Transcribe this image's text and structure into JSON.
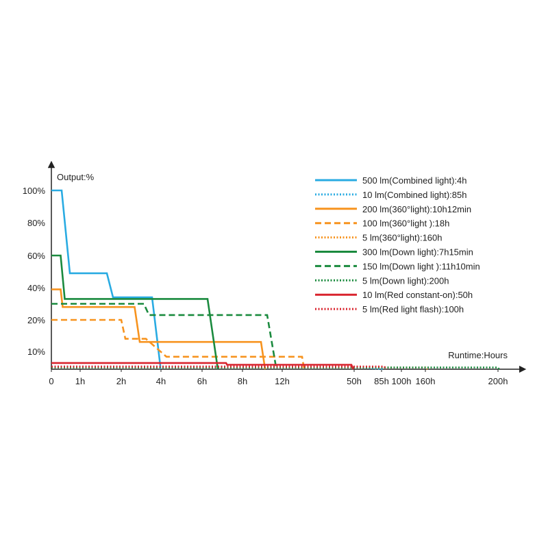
{
  "chart_data": {
    "type": "line",
    "ylabel": "Output:%",
    "xlabel": "Runtime:Hours",
    "x_ticks": [
      "0",
      "1h",
      "2h",
      "4h",
      "6h",
      "8h",
      "12h",
      "50h",
      "85h",
      "100h",
      "160h",
      "200h"
    ],
    "y_ticks": [
      "10%",
      "20%",
      "40%",
      "60%",
      "80%",
      "100%"
    ],
    "legend_position": "top-right",
    "series": [
      {
        "name": "500 lm(Combined light):4h",
        "color": "#29abe2",
        "style": "solid",
        "points": [
          [
            0,
            100
          ],
          [
            0.5,
            100
          ],
          [
            0.9,
            49
          ],
          [
            2.7,
            49
          ],
          [
            3,
            34
          ],
          [
            4.9,
            34
          ],
          [
            5.3,
            2
          ],
          [
            5.3,
            0
          ]
        ]
      },
      {
        "name": "10 lm(Combined light):85h",
        "color": "#29abe2",
        "style": "dotted",
        "points": [
          [
            0,
            1.5
          ],
          [
            14.6,
            1.5
          ],
          [
            16.2,
            0
          ]
        ]
      },
      {
        "name": "200 lm(360°light):10h12min",
        "color": "#f7931e",
        "style": "solid",
        "points": [
          [
            0,
            39
          ],
          [
            0.45,
            39
          ],
          [
            0.55,
            28
          ],
          [
            4.05,
            28
          ],
          [
            4.3,
            13
          ],
          [
            10.2,
            13
          ],
          [
            10.4,
            0
          ]
        ]
      },
      {
        "name": "100 lm(360°light ):18h",
        "color": "#f7931e",
        "style": "dashed",
        "points": [
          [
            0,
            20
          ],
          [
            3.4,
            20
          ],
          [
            3.6,
            14
          ],
          [
            4.6,
            14
          ],
          [
            5.6,
            7
          ],
          [
            12.2,
            7
          ],
          [
            12.3,
            0
          ]
        ]
      },
      {
        "name": "5 lm(360°light):160h",
        "color": "#f7931e",
        "style": "dotted",
        "points": [
          [
            0,
            1
          ],
          [
            18.2,
            1
          ],
          [
            18.3,
            0
          ]
        ]
      },
      {
        "name": "300 lm(Down light):7h15min",
        "color": "#1a8a3e",
        "style": "solid",
        "points": [
          [
            0,
            60
          ],
          [
            0.45,
            60
          ],
          [
            0.65,
            33
          ],
          [
            7.6,
            33
          ],
          [
            8.1,
            0
          ]
        ]
      },
      {
        "name": "150 lm(Down light ):11h10min",
        "color": "#1a8a3e",
        "style": "dashed",
        "points": [
          [
            0,
            30
          ],
          [
            4.5,
            30
          ],
          [
            4.75,
            23
          ],
          [
            10.5,
            23
          ],
          [
            10.95,
            0
          ]
        ]
      },
      {
        "name": "5 lm(Down light):200h",
        "color": "#1a8a3e",
        "style": "dotted",
        "points": [
          [
            0,
            1
          ],
          [
            21.7,
            1
          ],
          [
            21.8,
            0
          ]
        ]
      },
      {
        "name": "10 lm(Red constant-on):50h",
        "color": "#d9232d",
        "style": "solid",
        "points": [
          [
            0,
            3.5
          ],
          [
            8.5,
            3.5
          ],
          [
            8.55,
            2.5
          ],
          [
            14.6,
            2.5
          ],
          [
            14.7,
            0
          ]
        ]
      },
      {
        "name": "5 lm(Red light flash):100h",
        "color": "#d9232d",
        "style": "dotted",
        "points": [
          [
            0,
            1.5
          ],
          [
            16.2,
            1.5
          ],
          [
            16.3,
            0
          ]
        ]
      }
    ]
  }
}
